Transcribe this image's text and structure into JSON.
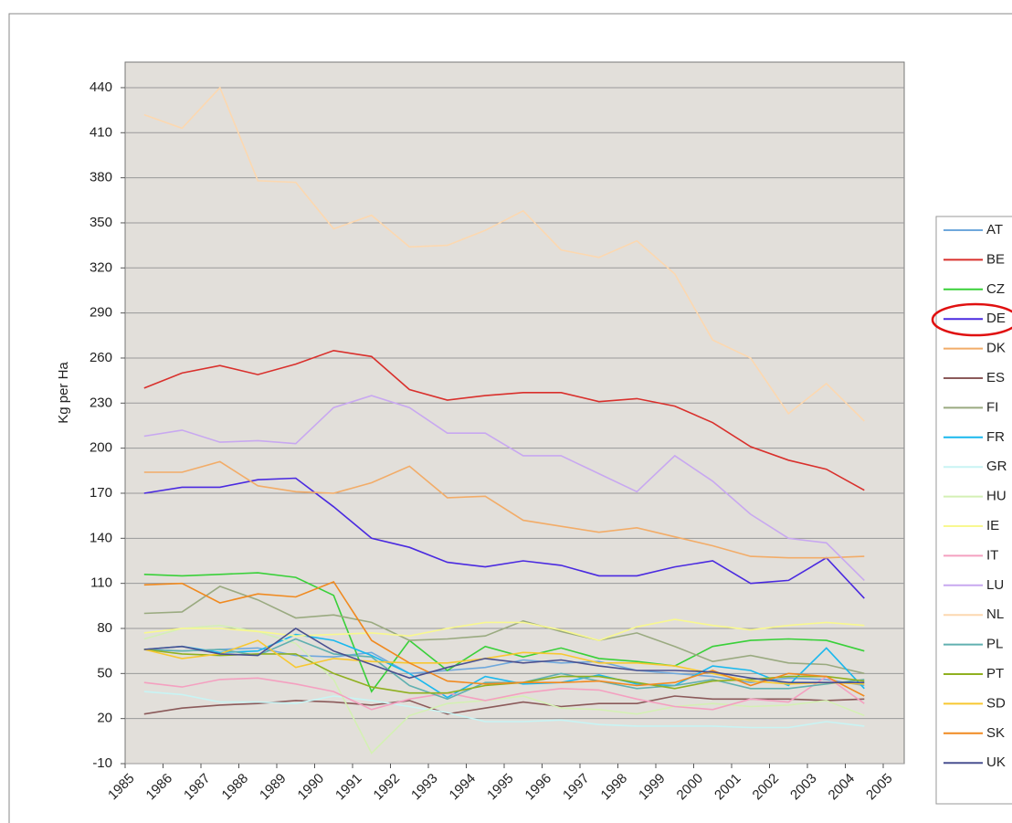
{
  "chart_data": {
    "type": "line",
    "y_label": "Kg per Ha",
    "categories": [
      "1985",
      "1986",
      "1987",
      "1988",
      "1989",
      "1990",
      "1991",
      "1992",
      "1993",
      "1994",
      "1995",
      "1996",
      "1997",
      "1998",
      "1999",
      "2000",
      "2001",
      "2002",
      "2003",
      "2004",
      "2005"
    ],
    "ylim": [
      -10,
      457
    ],
    "yticks": [
      -10,
      20,
      50,
      80,
      110,
      140,
      170,
      200,
      230,
      260,
      290,
      320,
      350,
      380,
      410,
      440
    ],
    "grid": true,
    "legend": "right",
    "series": [
      {
        "name": "AT",
        "color": "#6fa8dc",
        "values": [
          66,
          65,
          66,
          67,
          62,
          61,
          64,
          50,
          52,
          54,
          59,
          57,
          58,
          52,
          50,
          48,
          44,
          47,
          46,
          42,
          null
        ]
      },
      {
        "name": "BE",
        "color": "#d9302c",
        "values": [
          240,
          250,
          255,
          249,
          256,
          265,
          261,
          239,
          232,
          235,
          237,
          237,
          231,
          233,
          228,
          217,
          201,
          192,
          186,
          172,
          null
        ]
      },
      {
        "name": "CZ",
        "color": "#39d039",
        "values": [
          116,
          115,
          116,
          117,
          114,
          102,
          38,
          72,
          52,
          68,
          61,
          67,
          60,
          58,
          55,
          68,
          72,
          73,
          72,
          65,
          null
        ]
      },
      {
        "name": "DE",
        "color": "#4a2ae0",
        "values": [
          170,
          174,
          174,
          179,
          180,
          161,
          140,
          134,
          124,
          121,
          125,
          122,
          115,
          115,
          121,
          125,
          110,
          112,
          127,
          100,
          null
        ]
      },
      {
        "name": "DK",
        "color": "#f2ac68",
        "values": [
          184,
          184,
          191,
          175,
          171,
          170,
          177,
          188,
          167,
          168,
          152,
          148,
          144,
          147,
          141,
          135,
          128,
          127,
          127,
          128,
          null
        ]
      },
      {
        "name": "ES",
        "color": "#8b5a5a",
        "values": [
          23,
          27,
          29,
          30,
          32,
          31,
          29,
          32,
          23,
          27,
          31,
          28,
          30,
          30,
          35,
          33,
          33,
          33,
          32,
          33,
          null
        ]
      },
      {
        "name": "FI",
        "color": "#9aaa80",
        "values": [
          90,
          91,
          108,
          99,
          87,
          89,
          84,
          72,
          73,
          75,
          85,
          78,
          72,
          77,
          68,
          58,
          62,
          57,
          56,
          50,
          null
        ]
      },
      {
        "name": "FR",
        "color": "#1ab8ee",
        "values": [
          66,
          68,
          64,
          65,
          76,
          72,
          62,
          50,
          34,
          48,
          43,
          44,
          49,
          43,
          42,
          55,
          52,
          42,
          67,
          40,
          null
        ]
      },
      {
        "name": "GR",
        "color": "#c8f4f4",
        "values": [
          38,
          36,
          31,
          31,
          30,
          35,
          32,
          28,
          24,
          18,
          18,
          19,
          16,
          15,
          15,
          15,
          14,
          14,
          18,
          15,
          null
        ]
      },
      {
        "name": "HU",
        "color": "#d4f0b4",
        "values": [
          73,
          80,
          82,
          78,
          70,
          46,
          -3,
          22,
          30,
          32,
          35,
          27,
          26,
          23,
          28,
          30,
          28,
          29,
          32,
          22,
          null
        ]
      },
      {
        "name": "IE",
        "color": "#f8f890",
        "values": [
          77,
          80,
          80,
          78,
          75,
          76,
          77,
          75,
          80,
          84,
          84,
          79,
          72,
          81,
          86,
          82,
          79,
          82,
          84,
          82,
          null
        ]
      },
      {
        "name": "IT",
        "color": "#f4a0c0",
        "values": [
          44,
          41,
          46,
          47,
          43,
          38,
          26,
          33,
          37,
          32,
          37,
          40,
          39,
          33,
          28,
          26,
          33,
          31,
          48,
          30,
          null
        ]
      },
      {
        "name": "LU",
        "color": "#c8a8f0",
        "values": [
          208,
          212,
          204,
          205,
          203,
          227,
          235,
          227,
          210,
          210,
          195,
          195,
          183,
          171,
          195,
          178,
          156,
          140,
          137,
          112,
          null
        ]
      },
      {
        "name": "NL",
        "color": "#fcd8b0",
        "values": [
          422,
          413,
          440,
          378,
          377,
          346,
          355,
          334,
          335,
          345,
          358,
          332,
          327,
          338,
          316,
          272,
          260,
          223,
          243,
          218,
          null
        ]
      },
      {
        "name": "PL",
        "color": "#60b0b0",
        "values": [
          66,
          65,
          66,
          62,
          73,
          63,
          61,
          42,
          33,
          44,
          44,
          50,
          45,
          40,
          42,
          46,
          40,
          40,
          43,
          46,
          null
        ]
      },
      {
        "name": "PT",
        "color": "#90b020",
        "values": [
          66,
          63,
          62,
          63,
          63,
          50,
          41,
          37,
          37,
          42,
          44,
          48,
          48,
          44,
          40,
          45,
          46,
          48,
          48,
          45,
          null
        ]
      },
      {
        "name": "SD",
        "color": "#f8c830",
        "values": [
          66,
          60,
          63,
          72,
          54,
          60,
          58,
          57,
          57,
          60,
          64,
          63,
          57,
          57,
          55,
          50,
          45,
          43,
          44,
          43,
          null
        ]
      },
      {
        "name": "SK",
        "color": "#f08a20",
        "values": [
          109,
          110,
          97,
          103,
          101,
          111,
          72,
          57,
          45,
          43,
          44,
          44,
          45,
          42,
          44,
          52,
          42,
          50,
          48,
          35,
          null
        ]
      },
      {
        "name": "UK",
        "color": "#4a5090",
        "values": [
          66,
          68,
          63,
          62,
          80,
          65,
          56,
          47,
          54,
          60,
          57,
          59,
          55,
          52,
          52,
          51,
          47,
          44,
          44,
          44,
          null
        ]
      }
    ]
  }
}
